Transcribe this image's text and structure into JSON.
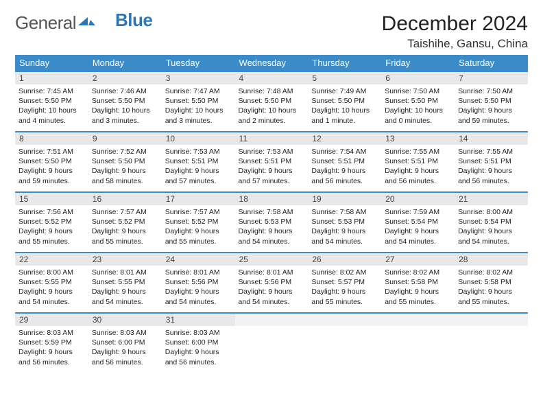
{
  "brand": {
    "part1": "General",
    "part2": "Blue"
  },
  "title": "December 2024",
  "location": "Taishihe, Gansu, China",
  "colors": {
    "header_bg": "#3b8bc9",
    "header_text": "#ffffff",
    "daynum_bg": "#e8e8e8",
    "rule": "#3b8bc9",
    "brand_accent": "#2b77b8"
  },
  "weekdays": [
    "Sunday",
    "Monday",
    "Tuesday",
    "Wednesday",
    "Thursday",
    "Friday",
    "Saturday"
  ],
  "days": [
    {
      "n": "1",
      "sr": "7:45 AM",
      "ss": "5:50 PM",
      "dl": "10 hours and 4 minutes."
    },
    {
      "n": "2",
      "sr": "7:46 AM",
      "ss": "5:50 PM",
      "dl": "10 hours and 3 minutes."
    },
    {
      "n": "3",
      "sr": "7:47 AM",
      "ss": "5:50 PM",
      "dl": "10 hours and 3 minutes."
    },
    {
      "n": "4",
      "sr": "7:48 AM",
      "ss": "5:50 PM",
      "dl": "10 hours and 2 minutes."
    },
    {
      "n": "5",
      "sr": "7:49 AM",
      "ss": "5:50 PM",
      "dl": "10 hours and 1 minute."
    },
    {
      "n": "6",
      "sr": "7:50 AM",
      "ss": "5:50 PM",
      "dl": "10 hours and 0 minutes."
    },
    {
      "n": "7",
      "sr": "7:50 AM",
      "ss": "5:50 PM",
      "dl": "9 hours and 59 minutes."
    },
    {
      "n": "8",
      "sr": "7:51 AM",
      "ss": "5:50 PM",
      "dl": "9 hours and 59 minutes."
    },
    {
      "n": "9",
      "sr": "7:52 AM",
      "ss": "5:50 PM",
      "dl": "9 hours and 58 minutes."
    },
    {
      "n": "10",
      "sr": "7:53 AM",
      "ss": "5:51 PM",
      "dl": "9 hours and 57 minutes."
    },
    {
      "n": "11",
      "sr": "7:53 AM",
      "ss": "5:51 PM",
      "dl": "9 hours and 57 minutes."
    },
    {
      "n": "12",
      "sr": "7:54 AM",
      "ss": "5:51 PM",
      "dl": "9 hours and 56 minutes."
    },
    {
      "n": "13",
      "sr": "7:55 AM",
      "ss": "5:51 PM",
      "dl": "9 hours and 56 minutes."
    },
    {
      "n": "14",
      "sr": "7:55 AM",
      "ss": "5:51 PM",
      "dl": "9 hours and 56 minutes."
    },
    {
      "n": "15",
      "sr": "7:56 AM",
      "ss": "5:52 PM",
      "dl": "9 hours and 55 minutes."
    },
    {
      "n": "16",
      "sr": "7:57 AM",
      "ss": "5:52 PM",
      "dl": "9 hours and 55 minutes."
    },
    {
      "n": "17",
      "sr": "7:57 AM",
      "ss": "5:52 PM",
      "dl": "9 hours and 55 minutes."
    },
    {
      "n": "18",
      "sr": "7:58 AM",
      "ss": "5:53 PM",
      "dl": "9 hours and 54 minutes."
    },
    {
      "n": "19",
      "sr": "7:58 AM",
      "ss": "5:53 PM",
      "dl": "9 hours and 54 minutes."
    },
    {
      "n": "20",
      "sr": "7:59 AM",
      "ss": "5:54 PM",
      "dl": "9 hours and 54 minutes."
    },
    {
      "n": "21",
      "sr": "8:00 AM",
      "ss": "5:54 PM",
      "dl": "9 hours and 54 minutes."
    },
    {
      "n": "22",
      "sr": "8:00 AM",
      "ss": "5:55 PM",
      "dl": "9 hours and 54 minutes."
    },
    {
      "n": "23",
      "sr": "8:01 AM",
      "ss": "5:55 PM",
      "dl": "9 hours and 54 minutes."
    },
    {
      "n": "24",
      "sr": "8:01 AM",
      "ss": "5:56 PM",
      "dl": "9 hours and 54 minutes."
    },
    {
      "n": "25",
      "sr": "8:01 AM",
      "ss": "5:56 PM",
      "dl": "9 hours and 54 minutes."
    },
    {
      "n": "26",
      "sr": "8:02 AM",
      "ss": "5:57 PM",
      "dl": "9 hours and 55 minutes."
    },
    {
      "n": "27",
      "sr": "8:02 AM",
      "ss": "5:58 PM",
      "dl": "9 hours and 55 minutes."
    },
    {
      "n": "28",
      "sr": "8:02 AM",
      "ss": "5:58 PM",
      "dl": "9 hours and 55 minutes."
    },
    {
      "n": "29",
      "sr": "8:03 AM",
      "ss": "5:59 PM",
      "dl": "9 hours and 56 minutes."
    },
    {
      "n": "30",
      "sr": "8:03 AM",
      "ss": "6:00 PM",
      "dl": "9 hours and 56 minutes."
    },
    {
      "n": "31",
      "sr": "8:03 AM",
      "ss": "6:00 PM",
      "dl": "9 hours and 56 minutes."
    }
  ],
  "labels": {
    "sunrise": "Sunrise:",
    "sunset": "Sunset:",
    "daylight": "Daylight:"
  },
  "layout": {
    "first_day_offset": 0,
    "rows": 5,
    "cols": 7
  }
}
